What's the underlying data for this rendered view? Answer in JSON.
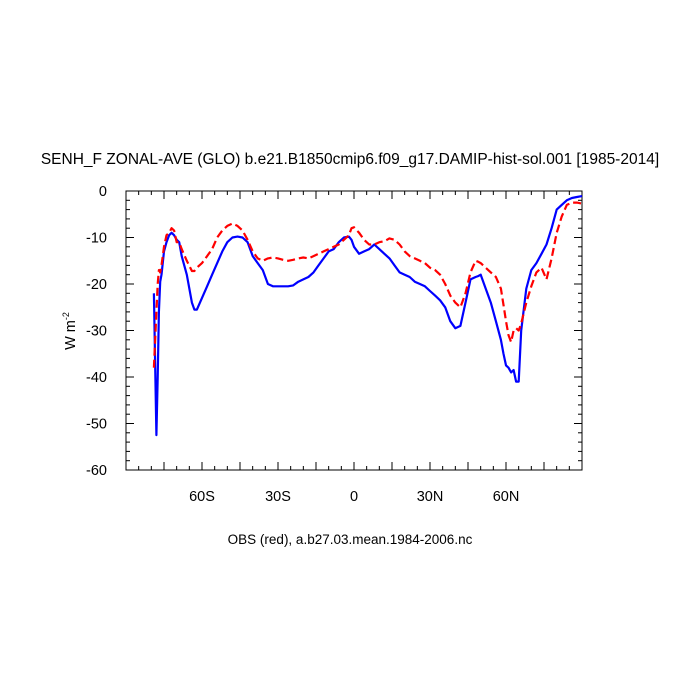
{
  "chart_data": {
    "type": "line",
    "title": "SENH_F ZONAL-AVE (GLO) b.e21.B1850cmip6.f09_g17.DAMIP-hist-sol.001 [1985-2014]",
    "caption": "OBS (red), a.b27.03.mean.1984-2006.nc",
    "ylabel": "W m",
    "ylabel_superscript": "-2",
    "xlim": [
      -90,
      90
    ],
    "ylim": [
      -60,
      0
    ],
    "x_ticks": [
      {
        "value": -60,
        "label": "60S"
      },
      {
        "value": -30,
        "label": "30S"
      },
      {
        "value": 0,
        "label": "0"
      },
      {
        "value": 30,
        "label": "30N"
      },
      {
        "value": 60,
        "label": "60N"
      }
    ],
    "y_ticks": [
      0,
      -10,
      -20,
      -30,
      -40,
      -50,
      -60
    ],
    "series": [
      {
        "color": "#0000ff",
        "dash": "solid",
        "x": [
          -79,
          -78,
          -77.5,
          -77,
          -76.5,
          -76,
          -75,
          -74,
          -73,
          -72,
          -71,
          -70,
          -69,
          -68,
          -66,
          -64,
          -63,
          -62,
          -60,
          -58,
          -56,
          -54,
          -52,
          -50,
          -48,
          -46,
          -44,
          -42,
          -40,
          -38,
          -36,
          -34,
          -32,
          -30,
          -28,
          -26,
          -24,
          -22,
          -20,
          -18,
          -16,
          -14,
          -12,
          -10,
          -8,
          -6,
          -4,
          -2,
          -1,
          0,
          2,
          4,
          6,
          8,
          10,
          12,
          14,
          16,
          18,
          20,
          22,
          24,
          26,
          28,
          30,
          32,
          34,
          36,
          38,
          40,
          42,
          44,
          46,
          48,
          49,
          50,
          52,
          54,
          56,
          58,
          59,
          60,
          61,
          62,
          63,
          64,
          65,
          66,
          68,
          70,
          72,
          74,
          76,
          78,
          80,
          82,
          84,
          86,
          88,
          90
        ],
        "y": [
          -22,
          -52.5,
          -40,
          -26,
          -19.5,
          -18,
          -13,
          -11,
          -9.5,
          -9,
          -9.5,
          -10.5,
          -11,
          -14,
          -18,
          -24,
          -25.5,
          -25.5,
          -23,
          -20.5,
          -18,
          -15.5,
          -13,
          -11,
          -10,
          -9.8,
          -10,
          -11,
          -14,
          -15.5,
          -17,
          -20,
          -20.5,
          -20.5,
          -20.5,
          -20.5,
          -20.3,
          -19.5,
          -19,
          -18.5,
          -17.5,
          -16,
          -14.5,
          -13,
          -12.5,
          -11,
          -10,
          -9.8,
          -10.5,
          -12,
          -13.5,
          -13,
          -12.5,
          -11.5,
          -12.5,
          -13.5,
          -14.5,
          -16,
          -17.5,
          -18,
          -18.5,
          -19.5,
          -20,
          -20.5,
          -21.5,
          -22.5,
          -23.5,
          -25,
          -28,
          -29.5,
          -29,
          -24,
          -19,
          -18.5,
          -18.3,
          -18,
          -21,
          -24,
          -28,
          -32,
          -35,
          -37.5,
          -38,
          -39,
          -38.5,
          -41,
          -41,
          -30,
          -21,
          -17,
          -15.5,
          -13.5,
          -11.5,
          -8,
          -4,
          -3,
          -2,
          -1.5,
          -1.3,
          -1.1
        ]
      },
      {
        "color": "#ff0000",
        "dash": "dashed",
        "x": [
          -79,
          -78,
          -77.5,
          -77,
          -76.5,
          -76,
          -75,
          -74,
          -73,
          -72,
          -71,
          -70,
          -69,
          -68,
          -66,
          -64,
          -63,
          -62,
          -60,
          -58,
          -56,
          -54,
          -52,
          -50,
          -48,
          -46,
          -44,
          -42,
          -40,
          -38,
          -36,
          -34,
          -32,
          -30,
          -28,
          -26,
          -24,
          -22,
          -20,
          -18,
          -16,
          -14,
          -12,
          -10,
          -8,
          -6,
          -4,
          -2,
          -1,
          0,
          2,
          4,
          6,
          8,
          10,
          12,
          14,
          16,
          18,
          20,
          22,
          24,
          26,
          28,
          30,
          32,
          34,
          36,
          38,
          40,
          42,
          44,
          46,
          48,
          49,
          50,
          52,
          54,
          56,
          58,
          59,
          60,
          61,
          62,
          63,
          64,
          65,
          66,
          68,
          70,
          72,
          74,
          76,
          78,
          80,
          82,
          84,
          86,
          88,
          90
        ],
        "y": [
          -38,
          -26,
          -20,
          -17,
          -17.5,
          -16,
          -12,
          -9.5,
          -9,
          -8,
          -8.5,
          -11,
          -11,
          -12.5,
          -15,
          -17.2,
          -17.2,
          -16.5,
          -15.5,
          -14,
          -12.5,
          -10,
          -8.5,
          -7.5,
          -7,
          -7.5,
          -8.5,
          -10.5,
          -13,
          -14.5,
          -15,
          -14.5,
          -14.3,
          -14.5,
          -14.8,
          -15,
          -14.8,
          -14.5,
          -14.3,
          -14.5,
          -14,
          -13.5,
          -13,
          -12.5,
          -12,
          -11.5,
          -10.5,
          -9.5,
          -8,
          -7.8,
          -9,
          -10.5,
          -11.5,
          -11.5,
          -11,
          -10.8,
          -10.2,
          -10.5,
          -11.5,
          -13,
          -14,
          -14.5,
          -15,
          -15.5,
          -16.5,
          -17,
          -18,
          -20,
          -22.5,
          -24,
          -25,
          -22,
          -17.5,
          -15,
          -15.2,
          -15.5,
          -16.5,
          -17.5,
          -18.5,
          -21,
          -24.5,
          -28,
          -31,
          -32.5,
          -30,
          -29.5,
          -30,
          -28.5,
          -24,
          -20.5,
          -17.5,
          -16.5,
          -19,
          -14.5,
          -9,
          -5.5,
          -3,
          -2.5,
          -2.5,
          -2.7
        ]
      }
    ]
  }
}
